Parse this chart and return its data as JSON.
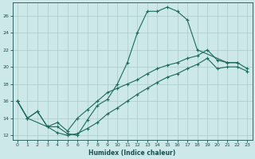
{
  "xlabel": "Humidex (Indice chaleur)",
  "bg_color": "#cce8e8",
  "grid_color": "#aacccc",
  "line_color": "#1a6b5a",
  "xlim": [
    -0.5,
    23.5
  ],
  "ylim": [
    11.5,
    27.5
  ],
  "xticks": [
    0,
    1,
    2,
    3,
    4,
    5,
    6,
    7,
    8,
    9,
    10,
    11,
    12,
    13,
    14,
    15,
    16,
    17,
    18,
    19,
    20,
    21,
    22,
    23
  ],
  "yticks": [
    12,
    14,
    16,
    18,
    20,
    22,
    24,
    26
  ],
  "upper_x": [
    0,
    1,
    3,
    4,
    5,
    6,
    7,
    8,
    9,
    10,
    11,
    12,
    13,
    14,
    15,
    16,
    17,
    18,
    21,
    22
  ],
  "upper_y": [
    16.0,
    14.0,
    13.0,
    13.0,
    12.2,
    12.0,
    13.8,
    15.5,
    16.2,
    18.0,
    20.5,
    24.0,
    26.5,
    26.5,
    27.0,
    26.5,
    25.5,
    22.0,
    20.5,
    20.5
  ],
  "mid_x": [
    0,
    1,
    2,
    3,
    4,
    5,
    6,
    7,
    8,
    9,
    10,
    11,
    12,
    13,
    14,
    15,
    16,
    17,
    18,
    19,
    20,
    21,
    22,
    23
  ],
  "mid_y": [
    16.0,
    14.0,
    14.8,
    13.0,
    13.5,
    12.5,
    14.0,
    15.0,
    16.0,
    17.0,
    17.5,
    18.0,
    18.5,
    19.2,
    19.8,
    20.2,
    20.5,
    21.0,
    21.3,
    22.0,
    20.8,
    20.5,
    20.5,
    19.8
  ],
  "low_x": [
    0,
    1,
    2,
    3,
    4,
    5,
    6,
    7,
    8,
    9,
    10,
    11,
    12,
    13,
    14,
    15,
    16,
    17,
    18,
    19,
    20,
    21,
    22,
    23
  ],
  "low_y": [
    16.0,
    14.0,
    14.8,
    13.0,
    12.3,
    12.0,
    12.2,
    12.8,
    13.5,
    14.5,
    15.2,
    16.0,
    16.8,
    17.5,
    18.2,
    18.8,
    19.2,
    19.8,
    20.3,
    21.0,
    19.8,
    20.0,
    20.0,
    19.5
  ]
}
